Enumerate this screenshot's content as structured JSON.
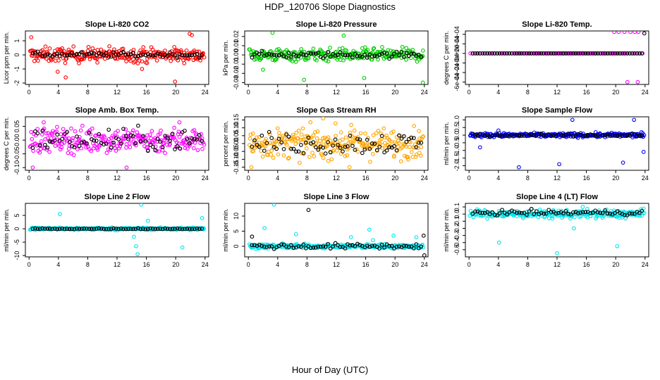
{
  "figure": {
    "title": "HDP_120706  Slope Diagnostics",
    "xlabel": "Hour of Day (UTC)"
  },
  "chart_data": [
    {
      "type": "scatter",
      "id": "co2",
      "title": "Slope Li-820 CO2",
      "ylabel": "Licor ppm per min.",
      "color": "#ff0000",
      "ylim": [
        -2.1,
        1.7
      ],
      "yticks": [
        -2,
        -1,
        0,
        1
      ],
      "yticklabels": [
        "-2",
        "-1",
        "0",
        "1"
      ],
      "xlim": [
        -0.5,
        24.5
      ],
      "xticks": [
        0,
        4,
        8,
        12,
        16,
        20,
        24
      ],
      "bulk": {
        "center": 0.0,
        "spread": 0.45,
        "outliers": [
          [
            0.3,
            1.25
          ],
          [
            3.9,
            -1.2
          ],
          [
            5.0,
            -1.6
          ],
          [
            19.9,
            -1.9
          ],
          [
            21.9,
            1.5
          ],
          [
            22.2,
            1.4
          ],
          [
            15.4,
            -1.0
          ]
        ]
      },
      "black": {
        "center": 0.02,
        "spread": 0.15
      }
    },
    {
      "type": "scatter",
      "id": "pressure",
      "title": "Slope Li-820 Pressure",
      "ylabel": "kPa per min.",
      "color": "#00cc00",
      "ylim": [
        -0.032,
        0.026
      ],
      "yticks": [
        -0.03,
        -0.01,
        0.01
      ],
      "yticklabels": [
        "-0.03",
        "-0.01",
        "0.01"
      ],
      "yticks_minor": [
        -0.02,
        0.0,
        0.02
      ],
      "yticklabels_minor": [
        "-0.02",
        "0.00",
        "0.02"
      ],
      "xlim": [
        -0.5,
        24.5
      ],
      "xticks": [
        0,
        4,
        8,
        12,
        16,
        20,
        24
      ],
      "bulk": {
        "center": 0.0,
        "spread": 0.006,
        "outliers": [
          [
            3.3,
            0.024
          ],
          [
            7.6,
            -0.027
          ],
          [
            13.0,
            0.021
          ],
          [
            23.8,
            -0.03
          ],
          [
            15.8,
            -0.025
          ],
          [
            2.0,
            -0.016
          ]
        ]
      },
      "black": {
        "center": 0.0,
        "spread": 0.003
      }
    },
    {
      "type": "scatter",
      "id": "temp",
      "title": "Slope Li-820 Temp.",
      "ylabel": "degrees C per min.",
      "color": "#ff00ff",
      "ylim": [
        -0.00065,
        0.00047
      ],
      "yticks": [
        -0.0006,
        -0.0004,
        -0.0002,
        0.0,
        0.0002,
        0.0004
      ],
      "yticklabels": [
        "-6e-04",
        "-4e-04",
        "-2e-04",
        "0e+00",
        "2e-04",
        "4e-04"
      ],
      "xlim": [
        -0.5,
        24.5
      ],
      "xticks": [
        0,
        4,
        8,
        12,
        16,
        20,
        24
      ],
      "bulk": {
        "center": 0.0,
        "spread": 0.0,
        "outliers": [
          [
            19.8,
            0.00045
          ],
          [
            20.4,
            0.00045
          ],
          [
            21.2,
            0.00045
          ],
          [
            22.0,
            0.00045
          ],
          [
            22.6,
            0.00045
          ],
          [
            23.1,
            0.00045
          ],
          [
            21.6,
            -0.0006
          ],
          [
            23.0,
            -0.0006
          ]
        ]
      },
      "black": {
        "center": 0.0,
        "spread": 0.0,
        "outliers": [
          [
            23.9,
            0.00042
          ]
        ]
      }
    },
    {
      "type": "scatter",
      "id": "ambtemp",
      "title": "Slope Amb. Box Temp.",
      "ylabel": "degrees C per min.",
      "color": "#ff00ff",
      "ylim": [
        -0.11,
        0.085
      ],
      "yticks": [
        -0.1,
        -0.05,
        0.0,
        0.05
      ],
      "yticklabels": [
        "-0.10",
        "-0.05",
        "0.00",
        "0.05"
      ],
      "xlim": [
        -0.5,
        24.5
      ],
      "xticks": [
        0,
        4,
        8,
        12,
        16,
        20,
        24
      ],
      "bulk": {
        "center": 0.0,
        "spread": 0.04,
        "outliers": [
          [
            2.0,
            0.065
          ],
          [
            0.5,
            -0.1
          ],
          [
            13.3,
            -0.1
          ],
          [
            20.5,
            0.065
          ]
        ]
      },
      "black": {
        "center": 0.0,
        "spread": 0.035
      }
    },
    {
      "type": "scatter",
      "id": "rh",
      "title": "Slope Gas Stream RH",
      "ylabel": "percent per min.",
      "color": "#ffa500",
      "ylim": [
        -0.17,
        0.17
      ],
      "yticks": [
        -0.15,
        -0.05,
        0.05,
        0.15
      ],
      "yticklabels": [
        "-0.15",
        "-0.05",
        "0.05",
        "0.15"
      ],
      "yticks_minor": [
        -0.1,
        0.0,
        0.1
      ],
      "yticklabels_minor": [
        "-0.10",
        "0.00",
        "0.10"
      ],
      "xlim": [
        -0.5,
        24.5
      ],
      "xticks": [
        0,
        4,
        8,
        12,
        16,
        20,
        24
      ],
      "bulk": {
        "center": 0.0,
        "spread": 0.08,
        "outliers": [
          [
            0.4,
            -0.15
          ],
          [
            10.2,
            0.16
          ],
          [
            13.8,
            -0.15
          ]
        ]
      },
      "black": {
        "center": 0.0,
        "spread": 0.06
      }
    },
    {
      "type": "scatter",
      "id": "sampleflow",
      "title": "Slope Sample Flow",
      "ylabel": "ml/min per min.",
      "color": "#0000ff",
      "ylim": [
        -2.3,
        1.2
      ],
      "yticks": [
        -2.0,
        -1.5,
        -1.0,
        -0.5,
        0.0,
        0.5,
        1.0
      ],
      "yticklabels": [
        "-2.0",
        "-1.5",
        "-1.0",
        "-0.5",
        "0.0",
        "0.5",
        "1.0"
      ],
      "xlim": [
        -0.5,
        24.5
      ],
      "xticks": [
        0,
        4,
        8,
        12,
        16,
        20,
        24
      ],
      "bulk": {
        "center": 0.0,
        "spread": 0.12,
        "outliers": [
          [
            1.5,
            -0.8
          ],
          [
            6.8,
            -2.1
          ],
          [
            12.3,
            -1.9
          ],
          [
            14.1,
            1.0
          ],
          [
            21.0,
            -1.8
          ],
          [
            22.5,
            1.0
          ],
          [
            23.8,
            -1.1
          ],
          [
            4.0,
            0.3
          ]
        ]
      },
      "black": {
        "center": 0.0,
        "spread": 0.08
      }
    },
    {
      "type": "scatter",
      "id": "line2",
      "title": "Slope Line 2 Flow",
      "ylabel": "ml/min per min.",
      "color": "#00e5ee",
      "ylim": [
        -10.5,
        9.5
      ],
      "yticks": [
        -10,
        -5,
        0,
        5
      ],
      "yticklabels": [
        "-10",
        "-5",
        "0",
        "5"
      ],
      "xlim": [
        -0.5,
        24.5
      ],
      "xticks": [
        0,
        4,
        8,
        12,
        16,
        20,
        24
      ],
      "bulk": {
        "center": 0.0,
        "spread": 0.4,
        "outliers": [
          [
            4.2,
            5.5
          ],
          [
            14.3,
            -3.0
          ],
          [
            14.6,
            -6.5
          ],
          [
            14.8,
            -9.5
          ],
          [
            15.3,
            9.0
          ],
          [
            16.2,
            3.0
          ],
          [
            23.6,
            4.0
          ],
          [
            20.9,
            -7.0
          ]
        ]
      },
      "black": {
        "center": 0.0,
        "spread": 0.15
      }
    },
    {
      "type": "scatter",
      "id": "line3",
      "title": "Slope Line 3 Flow",
      "ylabel": "ml/min per min.",
      "color": "#00e5ee",
      "ylim": [
        -3.5,
        14.2
      ],
      "yticks": [
        0,
        5,
        10
      ],
      "yticklabels": [
        "0",
        "5",
        "10"
      ],
      "xlim": [
        -0.5,
        24.5
      ],
      "xticks": [
        0,
        4,
        8,
        12,
        16,
        20,
        24
      ],
      "bulk": {
        "center": 0.0,
        "spread": 0.6,
        "outliers": [
          [
            3.5,
            13.8
          ],
          [
            2.2,
            6.0
          ],
          [
            6.5,
            4.0
          ],
          [
            14.0,
            3.0
          ],
          [
            16.5,
            5.5
          ],
          [
            17.0,
            2.0
          ],
          [
            19.8,
            3.5
          ],
          [
            22.9,
            3.0
          ]
        ]
      },
      "black": {
        "center": 0.0,
        "spread": 0.8,
        "outliers": [
          [
            0.5,
            3.2
          ],
          [
            8.2,
            12.0
          ],
          [
            23.9,
            3.5
          ],
          [
            24.0,
            -3.0
          ]
        ]
      }
    },
    {
      "type": "scatter",
      "id": "line4",
      "title": "Slope Line 4 (LT) Flow",
      "ylabel": "ml/min per min.",
      "color": "#00e5ee",
      "ylim": [
        -0.6,
        0.15
      ],
      "yticks": [
        -0.5,
        -0.4,
        -0.3,
        -0.2,
        -0.1,
        0.0,
        0.1
      ],
      "yticklabels": [
        "-0.5",
        "-0.4",
        "-0.3",
        "-0.2",
        "-0.1",
        "0.0",
        "0.1"
      ],
      "xlim": [
        -0.5,
        24.5
      ],
      "xticks": [
        0,
        4,
        8,
        12,
        16,
        20,
        24
      ],
      "bulk": {
        "center": 0.0,
        "spread": 0.05,
        "outliers": [
          [
            4.1,
            -0.4
          ],
          [
            12.0,
            -0.55
          ],
          [
            14.3,
            -0.2
          ],
          [
            20.2,
            -0.45
          ],
          [
            15.5,
            0.1
          ]
        ]
      },
      "black": {
        "center": 0.02,
        "spread": 0.03
      }
    }
  ]
}
